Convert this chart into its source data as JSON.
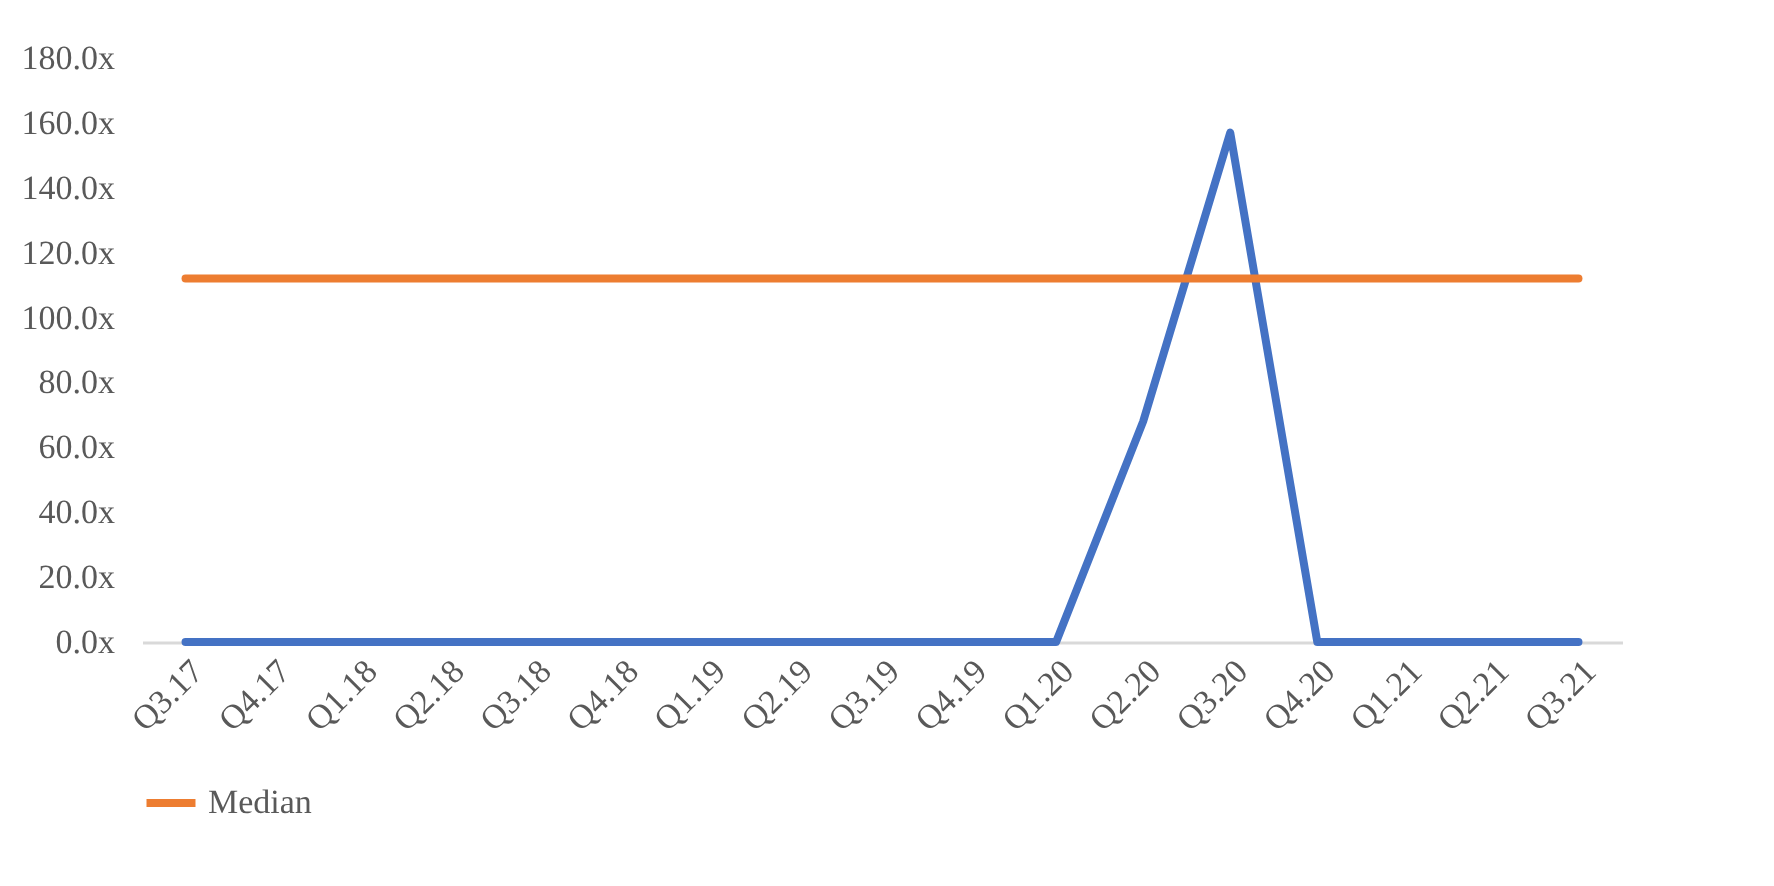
{
  "chart_data": {
    "type": "line",
    "categories": [
      "Q3.17",
      "Q4.17",
      "Q1.18",
      "Q2.18",
      "Q3.18",
      "Q4.18",
      "Q1.19",
      "Q2.19",
      "Q3.19",
      "Q4.19",
      "Q1.20",
      "Q2.20",
      "Q3.20",
      "Q4.20",
      "Q1.21",
      "Q2.21",
      "Q3.21"
    ],
    "series": [
      {
        "color": "#4472c4",
        "values": [
          0,
          0,
          0,
          0,
          0,
          0,
          0,
          0,
          0,
          0,
          0,
          68,
          157,
          0,
          0,
          0,
          0
        ]
      },
      {
        "name": "Median",
        "color": "#ed7d31",
        "values": [
          112,
          112,
          112,
          112,
          112,
          112,
          112,
          112,
          112,
          112,
          112,
          112,
          112,
          112,
          112,
          112,
          112
        ]
      }
    ],
    "ylim": [
      0,
      180
    ],
    "yticks": [
      {
        "value": 0,
        "label": "0.0x"
      },
      {
        "value": 20,
        "label": "20.0x"
      },
      {
        "value": 40,
        "label": "40.0x"
      },
      {
        "value": 60,
        "label": "60.0x"
      },
      {
        "value": 80,
        "label": "80.0x"
      },
      {
        "value": 100,
        "label": "100.0x"
      },
      {
        "value": 120,
        "label": "120.0x"
      },
      {
        "value": 140,
        "label": "140.0x"
      },
      {
        "value": 160,
        "label": "160.0x"
      },
      {
        "value": 180,
        "label": "180.0x"
      }
    ],
    "grid": false,
    "legend": "bottom",
    "marker": "none",
    "line_style": "solid"
  }
}
